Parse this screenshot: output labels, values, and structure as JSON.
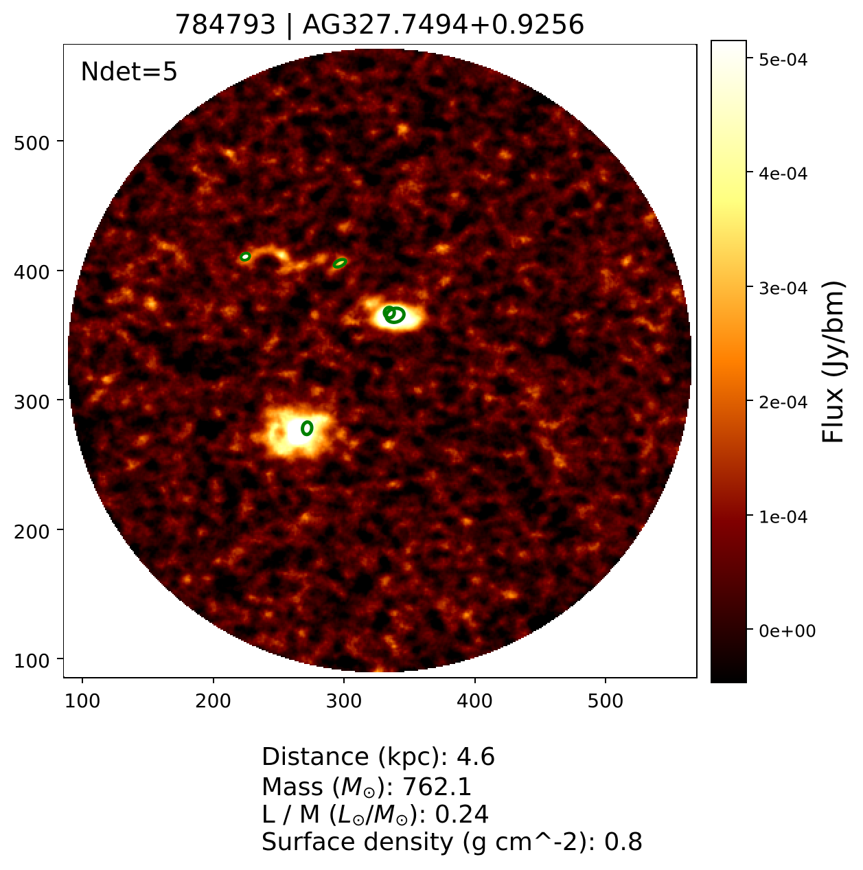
{
  "figure": {
    "title": "784793 | AG327.7494+0.9256",
    "annotation": "Ndet=5",
    "background_color": "#ffffff"
  },
  "chart_data": {
    "type": "heatmap",
    "title": "784793 | AG327.7494+0.9256",
    "annotation": "Ndet=5",
    "colormap": "afmhot",
    "grid": false,
    "x_ticks": [
      {
        "value": 100,
        "label": "100"
      },
      {
        "value": 200,
        "label": "200"
      },
      {
        "value": 300,
        "label": "300"
      },
      {
        "value": 400,
        "label": "400"
      },
      {
        "value": 500,
        "label": "500"
      }
    ],
    "y_ticks": [
      {
        "value": 100,
        "label": "100"
      },
      {
        "value": 200,
        "label": "200"
      },
      {
        "value": 300,
        "label": "300"
      },
      {
        "value": 400,
        "label": "400"
      },
      {
        "value": 500,
        "label": "500"
      }
    ],
    "x_range": [
      85.8,
      568.8
    ],
    "y_range": [
      86.4,
      573.2
    ],
    "mask": {
      "shape": "circle",
      "note": "image masked to inscribed circle, white outside"
    },
    "colorbar": {
      "label": "Flux (Jy/bm)",
      "vmin": -4.63e-05,
      "vmax": 0.0005144,
      "ticks": [
        {
          "value": 0.0,
          "label": "0e+00"
        },
        {
          "value": 0.0001,
          "label": "1e-04"
        },
        {
          "value": 0.0002,
          "label": "2e-04"
        },
        {
          "value": 0.0003,
          "label": "3e-04"
        },
        {
          "value": 0.0004,
          "label": "4e-04"
        },
        {
          "value": 0.0005,
          "label": "5e-04"
        }
      ]
    },
    "contour_color": "#008000",
    "detections": [
      {
        "x": 224.6,
        "y": 409.8,
        "rx": 3.4,
        "ry": 2.6,
        "angle": -20,
        "stroke_px": 4.0
      },
      {
        "x": 296.9,
        "y": 404.8,
        "rx": 4.7,
        "ry": 2.4,
        "angle": -25,
        "stroke_px": 4.5
      },
      {
        "x": 334.7,
        "y": 366.7,
        "rx": 3.8,
        "ry": 4.1,
        "angle": 0,
        "stroke_px": 5.0
      },
      {
        "x": 339.1,
        "y": 364.6,
        "rx": 6.9,
        "ry": 5.3,
        "angle": -15,
        "stroke_px": 5.0
      },
      {
        "x": 271.8,
        "y": 277.6,
        "rx": 3.5,
        "ry": 4.8,
        "angle": 8,
        "stroke_px": 5.0
      }
    ],
    "sources": [
      {
        "x": 224.5,
        "y": 410.0,
        "amp": 0.00055,
        "sx": 1.6,
        "sy": 1.3,
        "rot": 0
      },
      {
        "x": 226.0,
        "y": 409.0,
        "amp": 0.00016,
        "sx": 5.0,
        "sy": 4.0,
        "rot": 0
      },
      {
        "x": 297.0,
        "y": 405.0,
        "amp": 0.00036,
        "sx": 4.5,
        "sy": 2.8,
        "rot": -35
      },
      {
        "x": 337.0,
        "y": 364.0,
        "amp": 0.00105,
        "sx": 7.0,
        "sy": 4.5,
        "rot": -15
      },
      {
        "x": 345.0,
        "y": 361.5,
        "amp": 0.00034,
        "sx": 13.0,
        "sy": 6.0,
        "rot": -10
      },
      {
        "x": 330.0,
        "y": 370.0,
        "amp": 0.0002,
        "sx": 9.0,
        "sy": 9.0,
        "rot": 0
      },
      {
        "x": 266.0,
        "y": 275.0,
        "amp": 0.00095,
        "sx": 5.0,
        "sy": 5.0,
        "rot": 0
      },
      {
        "x": 266.0,
        "y": 274.0,
        "amp": 0.00032,
        "sx": 13.5,
        "sy": 12.0,
        "rot": 0
      },
      {
        "x": 264.0,
        "y": 277.0,
        "amp": 0.00012,
        "sx": 21.0,
        "sy": 19.0,
        "rot": 0
      },
      {
        "x": 234.0,
        "y": 413.0,
        "amp": 0.00018,
        "sx": 4.0,
        "sy": 3.0,
        "rot": -20
      },
      {
        "x": 243.0,
        "y": 416.0,
        "amp": 0.00024,
        "sx": 5.0,
        "sy": 3.5,
        "rot": -10
      },
      {
        "x": 252.0,
        "y": 411.0,
        "amp": 0.00022,
        "sx": 4.0,
        "sy": 3.0,
        "rot": 20
      },
      {
        "x": 258.0,
        "y": 404.0,
        "amp": 0.00016,
        "sx": 4.0,
        "sy": 4.0,
        "rot": 0
      },
      {
        "x": 268.0,
        "y": 403.0,
        "amp": 0.00015,
        "sx": 5.0,
        "sy": 3.0,
        "rot": 0
      },
      {
        "x": 283.0,
        "y": 406.0,
        "amp": 0.00016,
        "sx": 4.0,
        "sy": 3.0,
        "rot": -30
      },
      {
        "x": 290.0,
        "y": 398.0,
        "amp": 0.00014,
        "sx": 4.0,
        "sy": 3.0,
        "rot": -40
      },
      {
        "x": 305.0,
        "y": 391.0,
        "amp": 0.00015,
        "sx": 5.0,
        "sy": 3.0,
        "rot": -45
      },
      {
        "x": 322.0,
        "y": 374.0,
        "amp": 0.00016,
        "sx": 6.0,
        "sy": 4.0,
        "rot": -30
      },
      {
        "x": 352.0,
        "y": 357.0,
        "amp": 0.00018,
        "sx": 6.0,
        "sy": 4.0,
        "rot": -20
      },
      {
        "x": 360.0,
        "y": 367.0,
        "amp": 0.00014,
        "sx": 5.0,
        "sy": 4.0,
        "rot": 0
      },
      {
        "x": 250.0,
        "y": 262.0,
        "amp": 0.00015,
        "sx": 6.0,
        "sy": 5.0,
        "rot": 30
      },
      {
        "x": 277.0,
        "y": 258.0,
        "amp": 0.00013,
        "sx": 5.0,
        "sy": 5.0,
        "rot": 0
      },
      {
        "x": 284.0,
        "y": 283.0,
        "amp": 0.00015,
        "sx": 5.0,
        "sy": 5.0,
        "rot": 0
      },
      {
        "x": 250.0,
        "y": 288.0,
        "amp": 0.00016,
        "sx": 6.0,
        "sy": 4.0,
        "rot": 20
      },
      {
        "x": 240.0,
        "y": 273.0,
        "amp": 0.00012,
        "sx": 5.0,
        "sy": 5.0,
        "rot": 0
      },
      {
        "x": 150.0,
        "y": 293.0,
        "amp": 0.00018,
        "sx": 3.5,
        "sy": 3.0,
        "rot": 0
      },
      {
        "x": 299.0,
        "y": 433.0,
        "amp": 0.00015,
        "sx": 4.0,
        "sy": 3.0,
        "rot": 0
      },
      {
        "x": 494.0,
        "y": 449.0,
        "amp": 0.00015,
        "sx": 3.5,
        "sy": 3.0,
        "rot": 0
      },
      {
        "x": 528.0,
        "y": 399.0,
        "amp": 0.00013,
        "sx": 4.0,
        "sy": 3.0,
        "rot": 0
      },
      {
        "x": 536.0,
        "y": 295.0,
        "amp": 0.00014,
        "sx": 4.0,
        "sy": 3.5,
        "rot": 0
      },
      {
        "x": 454.0,
        "y": 269.0,
        "amp": 0.00013,
        "sx": 4.0,
        "sy": 3.0,
        "rot": 0
      },
      {
        "x": 373.0,
        "y": 142.0,
        "amp": 0.00014,
        "sx": 4.0,
        "sy": 3.0,
        "rot": 0
      },
      {
        "x": 221.0,
        "y": 184.0,
        "amp": 0.00014,
        "sx": 4.0,
        "sy": 3.0,
        "rot": 0
      },
      {
        "x": 150.0,
        "y": 269.0,
        "amp": 0.00013,
        "sx": 4.0,
        "sy": 3.0,
        "rot": 0
      }
    ]
  },
  "stats": {
    "line1": {
      "text": "Distance (kpc): 4.6"
    },
    "line2": {
      "pre": "Mass (",
      "sym1": "M",
      "sub1": "⊙",
      "post": "): 762.1"
    },
    "line3": {
      "pre": "L / M (",
      "sym1": "L",
      "sub1": "⊙",
      "mid": "/",
      "sym2": "M",
      "sub2": "⊙",
      "post": "): 0.24"
    },
    "line4": {
      "text": "Surface density (g cm^-2): 0.8"
    }
  }
}
